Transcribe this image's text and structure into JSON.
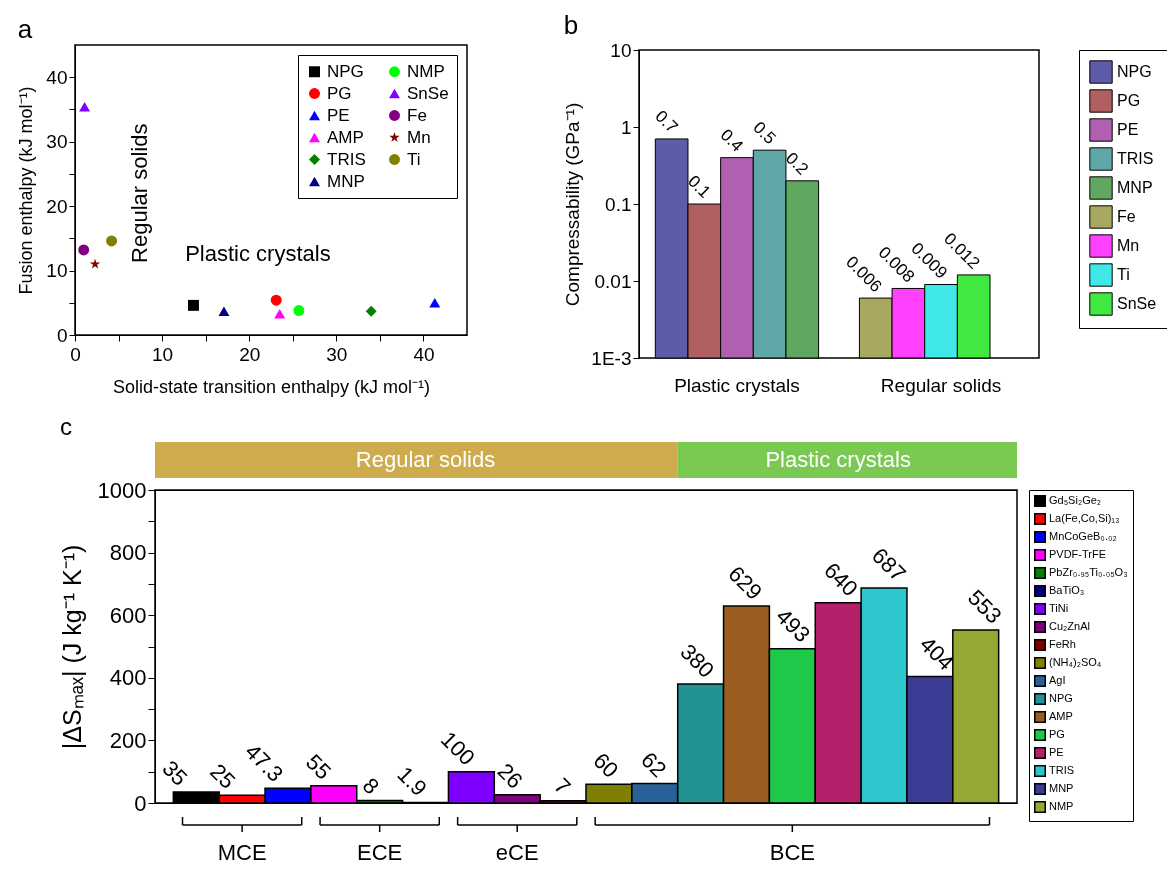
{
  "chart_data": [
    {
      "type": "scatter",
      "title": "a",
      "xlabel": "Solid-state transition enthalpy (kJ mol⁻¹)",
      "ylabel": "Fusion enthalpy (kJ mol⁻¹)",
      "xlim": [
        0,
        45
      ],
      "ylim": [
        0,
        45
      ],
      "xticks": [
        0,
        {
          "value": 5,
          "label": null
        },
        10,
        {
          "value": 15,
          "label": null
        },
        20,
        {
          "value": 25,
          "label": null
        },
        30,
        {
          "value": 35,
          "label": null
        },
        40
      ],
      "yticks": [
        0,
        {
          "value": 5,
          "label": null
        },
        10,
        {
          "value": 15,
          "label": null
        },
        20,
        {
          "value": 25,
          "label": null
        },
        30,
        {
          "value": 35,
          "label": null
        },
        40
      ],
      "legend": "top right",
      "annotations": [
        "Regular solids",
        "Plastic crystals"
      ],
      "series": [
        {
          "name": "NPG",
          "color": "#000000",
          "marker": "square",
          "x": [
            13.6
          ],
          "values": [
            4.6
          ]
        },
        {
          "name": "PG",
          "color": "#ff0000",
          "marker": "circle",
          "x": [
            23.1
          ],
          "values": [
            5.4
          ]
        },
        {
          "name": "PE",
          "color": "#0000ff",
          "marker": "triangle",
          "x": [
            41.3
          ],
          "values": [
            5.0
          ]
        },
        {
          "name": "AMP",
          "color": "#ff00ff",
          "marker": "triangle",
          "x": [
            23.5
          ],
          "values": [
            3.3
          ]
        },
        {
          "name": "TRIS",
          "color": "#007f00",
          "marker": "diamond",
          "x": [
            34.0
          ],
          "values": [
            3.7
          ]
        },
        {
          "name": "MNP",
          "color": "#000080",
          "marker": "triangle",
          "x": [
            17.1
          ],
          "values": [
            3.7
          ]
        },
        {
          "name": "NMP",
          "color": "#00ff00",
          "marker": "circle",
          "x": [
            25.7
          ],
          "values": [
            3.8
          ]
        },
        {
          "name": "SnSe",
          "color": "#8000ff",
          "marker": "triangle",
          "x": [
            1.1
          ],
          "values": [
            35.4
          ]
        },
        {
          "name": "Fe",
          "color": "#800080",
          "marker": "circle",
          "x": [
            1.0
          ],
          "values": [
            13.2
          ]
        },
        {
          "name": "Mn",
          "color": "#800000",
          "marker": "star",
          "x": [
            2.3
          ],
          "values": [
            11.0
          ]
        },
        {
          "name": "Ti",
          "color": "#808000",
          "marker": "circle",
          "x": [
            4.2
          ],
          "values": [
            14.6
          ]
        }
      ]
    },
    {
      "type": "bar",
      "title": "b",
      "ylabel": "Compressability (GPa⁻¹)",
      "categories": [
        "Plastic crystals",
        "Regular solids"
      ],
      "log": true,
      "ylim": [
        0.001,
        10
      ],
      "yticks": [
        {
          "value": 0.001,
          "label": "1E-3"
        },
        0.01,
        0.1,
        1,
        10
      ],
      "legend": "right",
      "data_labels": true,
      "series": [
        {
          "name": "NPG",
          "color": "#5c5ca8",
          "values": [
            0.7,
            null
          ]
        },
        {
          "name": "PG",
          "color": "#b06060",
          "values": [
            0.1,
            null
          ]
        },
        {
          "name": "PE",
          "color": "#b060b0",
          "values": [
            0.4,
            null
          ]
        },
        {
          "name": "TRIS",
          "color": "#60a8a8",
          "values": [
            0.5,
            null
          ]
        },
        {
          "name": "MNP",
          "color": "#60a860",
          "values": [
            0.2,
            null
          ]
        },
        {
          "name": "Fe",
          "color": "#a8a860",
          "values": [
            null,
            0.006
          ]
        },
        {
          "name": "Mn",
          "color": "#ff40ff",
          "values": [
            null,
            0.008
          ]
        },
        {
          "name": "Ti",
          "color": "#40e8e8",
          "values": [
            null,
            0.009
          ]
        },
        {
          "name": "SnSe",
          "color": "#40e840",
          "values": [
            null,
            0.012
          ]
        }
      ]
    },
    {
      "type": "bar",
      "title": "c",
      "ylabel": "|ΔSₘₐₓ| (J kg⁻¹ K⁻¹)",
      "tick_labels": "y",
      "legend": "right",
      "data_labels": true,
      "ylim": [
        0,
        1000
      ],
      "yticks": [
        0,
        {
          "value": 100,
          "label": null
        },
        200,
        {
          "value": 300,
          "label": null
        },
        400,
        {
          "value": 500,
          "label": null
        },
        600,
        {
          "value": 700,
          "label": null
        },
        800,
        {
          "value": 900,
          "label": null
        },
        1000
      ],
      "categories": [
        null,
        null,
        null,
        null,
        null,
        null,
        null,
        null,
        null,
        null,
        null,
        null,
        null,
        null,
        null,
        null,
        null,
        null
      ],
      "annotations": [
        "Regular solids",
        "Plastic crystals",
        "MCE",
        "ECE",
        "eCE",
        "BCE"
      ],
      "series": [
        {
          "name": "Gd₅Si₂Ge₂",
          "color": "#000000",
          "values": [
            35,
            null,
            null,
            null,
            null,
            null,
            null,
            null,
            null,
            null,
            null,
            null,
            null,
            null,
            null,
            null,
            null,
            null
          ]
        },
        {
          "name": "La(Fe,Co,Si)₁₃",
          "color": "#ff0000",
          "values": [
            null,
            25,
            null,
            null,
            null,
            null,
            null,
            null,
            null,
            null,
            null,
            null,
            null,
            null,
            null,
            null,
            null,
            null
          ]
        },
        {
          "name": "MnCoGeB₀.₀₂",
          "color": "#0000ff",
          "values": [
            null,
            null,
            47.3,
            null,
            null,
            null,
            null,
            null,
            null,
            null,
            null,
            null,
            null,
            null,
            null,
            null,
            null,
            null
          ]
        },
        {
          "name": "PVDF-TrFE",
          "color": "#ff00ff",
          "values": [
            null,
            null,
            null,
            55,
            null,
            null,
            null,
            null,
            null,
            null,
            null,
            null,
            null,
            null,
            null,
            null,
            null,
            null
          ]
        },
        {
          "name": "PbZr₀.₉₅Ti₀.₀₅O₃",
          "color": "#007f00",
          "values": [
            null,
            null,
            null,
            null,
            8,
            null,
            null,
            null,
            null,
            null,
            null,
            null,
            null,
            null,
            null,
            null,
            null,
            null
          ]
        },
        {
          "name": "BaTiO₃",
          "color": "#000080",
          "values": [
            null,
            null,
            null,
            null,
            null,
            1.9,
            null,
            null,
            null,
            null,
            null,
            null,
            null,
            null,
            null,
            null,
            null,
            null
          ]
        },
        {
          "name": "TiNi",
          "color": "#8000ff",
          "values": [
            null,
            null,
            null,
            null,
            null,
            null,
            100,
            null,
            null,
            null,
            null,
            null,
            null,
            null,
            null,
            null,
            null,
            null
          ]
        },
        {
          "name": "Cu₂ZnAl",
          "color": "#800080",
          "values": [
            null,
            null,
            null,
            null,
            null,
            null,
            null,
            26,
            null,
            null,
            null,
            null,
            null,
            null,
            null,
            null,
            null,
            null
          ]
        },
        {
          "name": "FeRh",
          "color": "#800000",
          "values": [
            null,
            null,
            null,
            null,
            null,
            null,
            null,
            null,
            7,
            null,
            null,
            null,
            null,
            null,
            null,
            null,
            null,
            null
          ]
        },
        {
          "name": "(NH₄)₂SO₄",
          "color": "#808000",
          "values": [
            null,
            null,
            null,
            null,
            null,
            null,
            null,
            null,
            null,
            60,
            null,
            null,
            null,
            null,
            null,
            null,
            null,
            null
          ]
        },
        {
          "name": "AgI",
          "color": "#2a6099",
          "values": [
            null,
            null,
            null,
            null,
            null,
            null,
            null,
            null,
            null,
            null,
            62,
            null,
            null,
            null,
            null,
            null,
            null,
            null
          ]
        },
        {
          "name": "NPG",
          "color": "#229393",
          "values": [
            null,
            null,
            null,
            null,
            null,
            null,
            null,
            null,
            null,
            null,
            null,
            380,
            null,
            null,
            null,
            null,
            null,
            null
          ]
        },
        {
          "name": "AMP",
          "color": "#9a5c1f",
          "values": [
            null,
            null,
            null,
            null,
            null,
            null,
            null,
            null,
            null,
            null,
            null,
            null,
            629,
            null,
            null,
            null,
            null,
            null
          ]
        },
        {
          "name": "PG",
          "color": "#1ec94a",
          "values": [
            null,
            null,
            null,
            null,
            null,
            null,
            null,
            null,
            null,
            null,
            null,
            null,
            null,
            493,
            null,
            null,
            null,
            null
          ]
        },
        {
          "name": "PE",
          "color": "#b5206c",
          "values": [
            null,
            null,
            null,
            null,
            null,
            null,
            null,
            null,
            null,
            null,
            null,
            null,
            null,
            null,
            640,
            null,
            null,
            null
          ]
        },
        {
          "name": "TRIS",
          "color": "#2cc6cc",
          "values": [
            null,
            null,
            null,
            null,
            null,
            null,
            null,
            null,
            null,
            null,
            null,
            null,
            null,
            null,
            null,
            687,
            null,
            null
          ]
        },
        {
          "name": "MNP",
          "color": "#3b3c94",
          "values": [
            null,
            null,
            null,
            null,
            null,
            null,
            null,
            null,
            null,
            null,
            null,
            null,
            null,
            null,
            null,
            null,
            404,
            null
          ]
        },
        {
          "name": "NMP",
          "color": "#94a832",
          "values": [
            null,
            null,
            null,
            null,
            null,
            null,
            null,
            null,
            null,
            null,
            null,
            null,
            null,
            null,
            null,
            null,
            null,
            553
          ]
        }
      ]
    }
  ]
}
